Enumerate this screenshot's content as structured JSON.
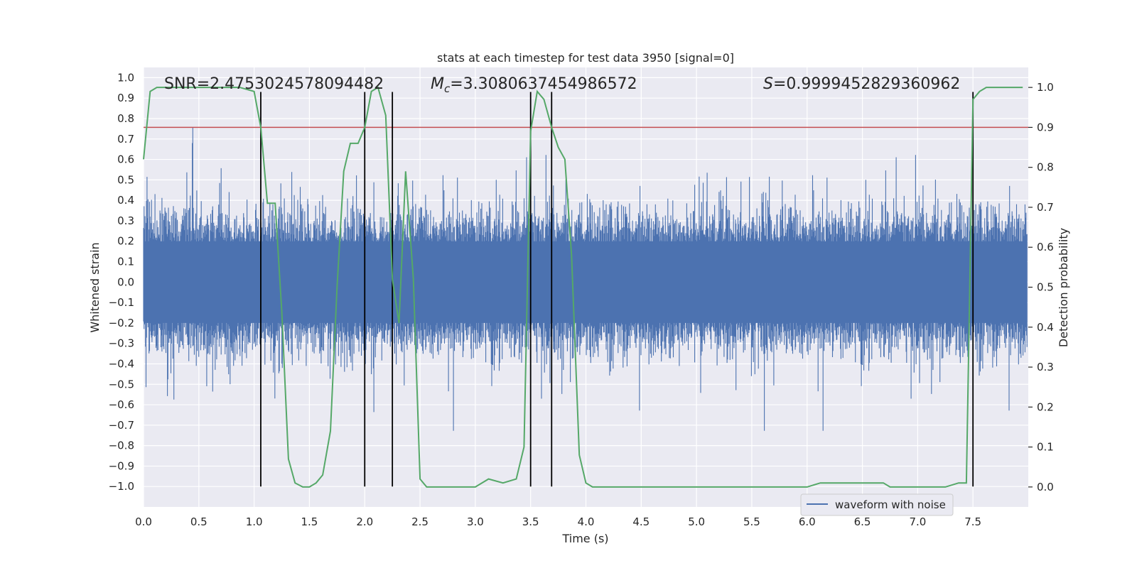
{
  "chart_data": {
    "type": "line",
    "title": "stats at each timestep for test data 3950 [signal=0]",
    "xlabel": "Time (s)",
    "ylabel": "Whitened strain",
    "y2label": "Detection probability",
    "xlim": [
      0,
      8
    ],
    "ylim": [
      -1.1,
      1.05
    ],
    "y2lim": [
      -0.05,
      1.05
    ],
    "xticks": [
      "0.0",
      "0.5",
      "1.0",
      "1.5",
      "2.0",
      "2.5",
      "3.0",
      "3.5",
      "4.0",
      "4.5",
      "5.0",
      "5.5",
      "6.0",
      "6.5",
      "7.0",
      "7.5"
    ],
    "yticks": [
      "1.0",
      "0.9",
      "0.8",
      "0.7",
      "0.6",
      "0.5",
      "0.4",
      "0.3",
      "0.2",
      "0.1",
      "0.0",
      "−0.1",
      "−0.2",
      "−0.3",
      "−0.4",
      "−0.5",
      "−0.6",
      "−0.7",
      "−0.8",
      "−0.9",
      "−1.0"
    ],
    "y2ticks": [
      "1.0",
      "0.9",
      "0.8",
      "0.7",
      "0.6",
      "0.5",
      "0.4",
      "0.3",
      "0.2",
      "0.1",
      "0.0"
    ],
    "annotations": {
      "snr": "SNR=2.4753024578094482",
      "mc_symbol": "M",
      "mc_sub": "c",
      "mc_value": "=3.3080637454986572",
      "s_symbol": "S",
      "s_value": "=0.9999452829360962"
    },
    "legend": {
      "label": "waveform with noise",
      "placement": "lower-right"
    },
    "threshold": {
      "value": 0.9,
      "axis": "y2",
      "color": "#c44e52"
    },
    "vertical_lines": [
      1.06,
      2.0,
      2.25,
      3.5,
      3.69,
      7.5
    ],
    "vline_range": [
      -1.0,
      0.93
    ],
    "waveform": {
      "name": "waveform with noise",
      "color": "#4c72b0",
      "x_start": 0,
      "x_end": 7.99,
      "amplitude": 0.35
    },
    "detection_probability": {
      "name": "detection probability",
      "color": "#55a868",
      "x": [
        0.0,
        0.06,
        0.12,
        0.25,
        0.5,
        0.75,
        0.87,
        1.0,
        1.06,
        1.12,
        1.19,
        1.25,
        1.31,
        1.37,
        1.44,
        1.5,
        1.56,
        1.62,
        1.69,
        1.75,
        1.81,
        1.87,
        1.94,
        2.0,
        2.06,
        2.12,
        2.19,
        2.25,
        2.31,
        2.37,
        2.44,
        2.5,
        2.56,
        2.62,
        2.69,
        2.75,
        2.87,
        3.0,
        3.12,
        3.25,
        3.37,
        3.44,
        3.5,
        3.56,
        3.62,
        3.69,
        3.75,
        3.81,
        3.87,
        3.94,
        4.0,
        4.06,
        4.25,
        4.5,
        5.0,
        5.5,
        6.0,
        6.12,
        6.25,
        6.31,
        6.37,
        6.44,
        6.5,
        6.62,
        6.69,
        6.75,
        7.0,
        7.25,
        7.37,
        7.44,
        7.5,
        7.56,
        7.62,
        7.75,
        7.87,
        7.95
      ],
      "y": [
        0.82,
        0.99,
        1.0,
        1.0,
        1.0,
        1.0,
        1.0,
        0.99,
        0.9,
        0.71,
        0.71,
        0.44,
        0.07,
        0.01,
        0.0,
        0.0,
        0.01,
        0.03,
        0.14,
        0.5,
        0.79,
        0.86,
        0.86,
        0.9,
        0.99,
        1.0,
        0.93,
        0.52,
        0.41,
        0.79,
        0.52,
        0.02,
        0.0,
        0.0,
        0.0,
        0.0,
        0.0,
        0.0,
        0.02,
        0.01,
        0.02,
        0.1,
        0.89,
        0.99,
        0.97,
        0.9,
        0.85,
        0.82,
        0.58,
        0.08,
        0.01,
        0.0,
        0.0,
        0.0,
        0.0,
        0.0,
        0.0,
        0.01,
        0.01,
        0.01,
        0.01,
        0.01,
        0.01,
        0.01,
        0.01,
        0.0,
        0.0,
        0.0,
        0.01,
        0.01,
        0.97,
        0.99,
        1.0,
        1.0,
        1.0,
        1.0
      ]
    }
  }
}
